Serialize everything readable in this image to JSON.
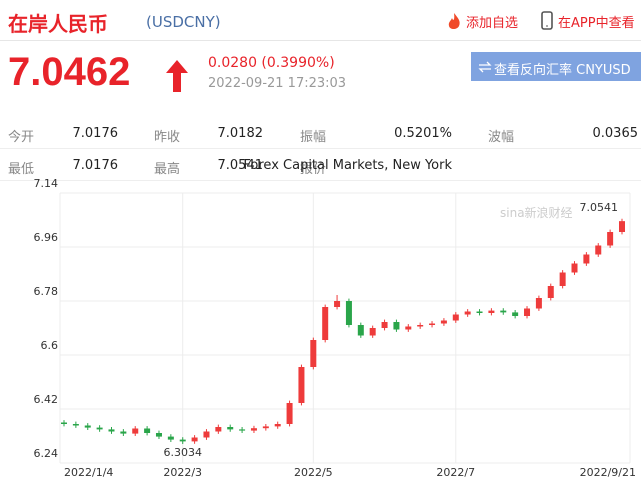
{
  "header": {
    "title": "在岸人民币",
    "code": "(USDCNY)",
    "add_watch": "添加自选",
    "view_app": "在APP中查看"
  },
  "quote": {
    "price": "7.0462",
    "change": "0.0280 (0.3990%)",
    "time": "2022-09-21 17:23:03",
    "reverse_button": "查看反向汇率 CNYUSD"
  },
  "stats": [
    [
      {
        "label": "今开",
        "value": "7.0176"
      },
      {
        "label": "昨收",
        "value": "7.0182"
      },
      {
        "label": "振幅",
        "value": "0.5201%"
      },
      {
        "label": "波幅",
        "value": "0.0365"
      }
    ],
    [
      {
        "label": "最低",
        "value": "7.0176"
      },
      {
        "label": "最高",
        "value": "7.0541"
      },
      {
        "label": "报价",
        "value": "Forex Capital Markets, New York"
      }
    ]
  ],
  "chart_data": {
    "type": "candlestick",
    "watermark": "sina新浪财经",
    "categories": [
      "2022/1/4",
      null,
      null,
      null,
      null,
      null,
      null,
      null,
      null,
      null,
      "2022/3",
      null,
      null,
      null,
      null,
      null,
      null,
      null,
      null,
      null,
      null,
      "2022/5",
      null,
      null,
      null,
      null,
      null,
      null,
      null,
      null,
      null,
      null,
      null,
      "2022/7",
      null,
      null,
      null,
      null,
      null,
      null,
      null,
      null,
      null,
      null,
      null,
      null,
      null,
      "2022/9/21"
    ],
    "open": [
      6.375,
      6.37,
      6.365,
      6.358,
      6.352,
      6.345,
      6.338,
      6.355,
      6.34,
      6.328,
      6.318,
      6.312,
      6.325,
      6.345,
      6.36,
      6.352,
      6.348,
      6.356,
      6.362,
      6.37,
      6.44,
      6.56,
      6.65,
      6.76,
      6.78,
      6.7,
      6.665,
      6.69,
      6.71,
      6.685,
      6.695,
      6.7,
      6.705,
      6.715,
      6.735,
      6.745,
      6.74,
      6.748,
      6.742,
      6.73,
      6.755,
      6.79,
      6.83,
      6.875,
      6.905,
      6.935,
      6.965,
      7.01
    ],
    "close": [
      6.37,
      6.365,
      6.358,
      6.352,
      6.345,
      6.338,
      6.355,
      6.34,
      6.328,
      6.318,
      6.312,
      6.325,
      6.345,
      6.36,
      6.352,
      6.348,
      6.356,
      6.362,
      6.37,
      6.44,
      6.56,
      6.65,
      6.76,
      6.78,
      6.7,
      6.665,
      6.69,
      6.71,
      6.685,
      6.695,
      6.7,
      6.705,
      6.715,
      6.735,
      6.745,
      6.74,
      6.748,
      6.742,
      6.73,
      6.755,
      6.79,
      6.83,
      6.875,
      6.905,
      6.935,
      6.965,
      7.01,
      7.0462
    ],
    "high": [
      6.383,
      6.378,
      6.373,
      6.366,
      6.36,
      6.353,
      6.363,
      6.363,
      6.348,
      6.336,
      6.326,
      6.333,
      6.353,
      6.368,
      6.368,
      6.36,
      6.364,
      6.37,
      6.378,
      6.448,
      6.568,
      6.658,
      6.768,
      6.8,
      6.788,
      6.708,
      6.698,
      6.718,
      6.718,
      6.703,
      6.708,
      6.713,
      6.723,
      6.743,
      6.753,
      6.753,
      6.756,
      6.756,
      6.75,
      6.763,
      6.798,
      6.838,
      6.883,
      6.913,
      6.943,
      6.973,
      7.018,
      7.0541
    ],
    "low": [
      6.362,
      6.357,
      6.35,
      6.344,
      6.337,
      6.33,
      6.33,
      6.332,
      6.32,
      6.31,
      6.3034,
      6.304,
      6.317,
      6.337,
      6.344,
      6.34,
      6.34,
      6.348,
      6.354,
      6.362,
      6.432,
      6.552,
      6.642,
      6.752,
      6.692,
      6.657,
      6.657,
      6.682,
      6.677,
      6.677,
      6.687,
      6.692,
      6.697,
      6.707,
      6.727,
      6.732,
      6.732,
      6.734,
      6.722,
      6.722,
      6.747,
      6.782,
      6.822,
      6.867,
      6.897,
      6.927,
      6.957,
      7.002
    ],
    "min_label": "6.3034",
    "max_label": "7.0541",
    "up_color": "#ee3b3b",
    "down_color": "#2aa54a",
    "ylim": [
      6.24,
      7.14
    ],
    "yticks": [
      6.24,
      6.42,
      6.6,
      6.78,
      6.96,
      7.14
    ],
    "grid": true
  }
}
